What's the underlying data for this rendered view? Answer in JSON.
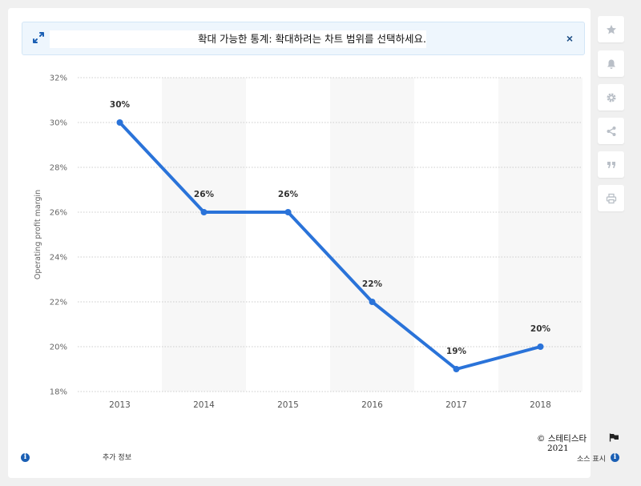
{
  "banner": {
    "text": "확대 가능한 통계: 확대하려는 차트 범위를 선택하세요.",
    "close_label": "×"
  },
  "sidebar": {
    "buttons": [
      {
        "name": "favorite",
        "icon": "star-icon"
      },
      {
        "name": "notification",
        "icon": "bell-icon"
      },
      {
        "name": "settings",
        "icon": "gear-icon"
      },
      {
        "name": "share",
        "icon": "share-icon"
      },
      {
        "name": "cite",
        "icon": "quote-icon"
      },
      {
        "name": "print",
        "icon": "print-icon"
      }
    ]
  },
  "footer": {
    "copyright": "© 스테티스타",
    "year": "2021",
    "more_info": "추가 정보",
    "show_source": "소스 표시"
  },
  "colors": {
    "line": "#2a73d9",
    "band": "#f7f7f7",
    "grid": "#cccccc",
    "accent": "#1a5fb4"
  },
  "chart_data": {
    "type": "line",
    "categories": [
      "2013",
      "2014",
      "2015",
      "2016",
      "2017",
      "2018"
    ],
    "series": [
      {
        "values": [
          30,
          26,
          26,
          22,
          19,
          20
        ]
      }
    ],
    "data_labels": [
      "30%",
      "26%",
      "26%",
      "22%",
      "19%",
      "20%"
    ],
    "ylabel": "Operating profit margin",
    "ylim": [
      18,
      32
    ],
    "yticks": [
      18,
      20,
      22,
      24,
      26,
      28,
      30,
      32
    ],
    "ytick_labels": [
      "18%",
      "20%",
      "22%",
      "24%",
      "26%",
      "28%",
      "30%",
      "32%"
    ],
    "grid": true
  }
}
